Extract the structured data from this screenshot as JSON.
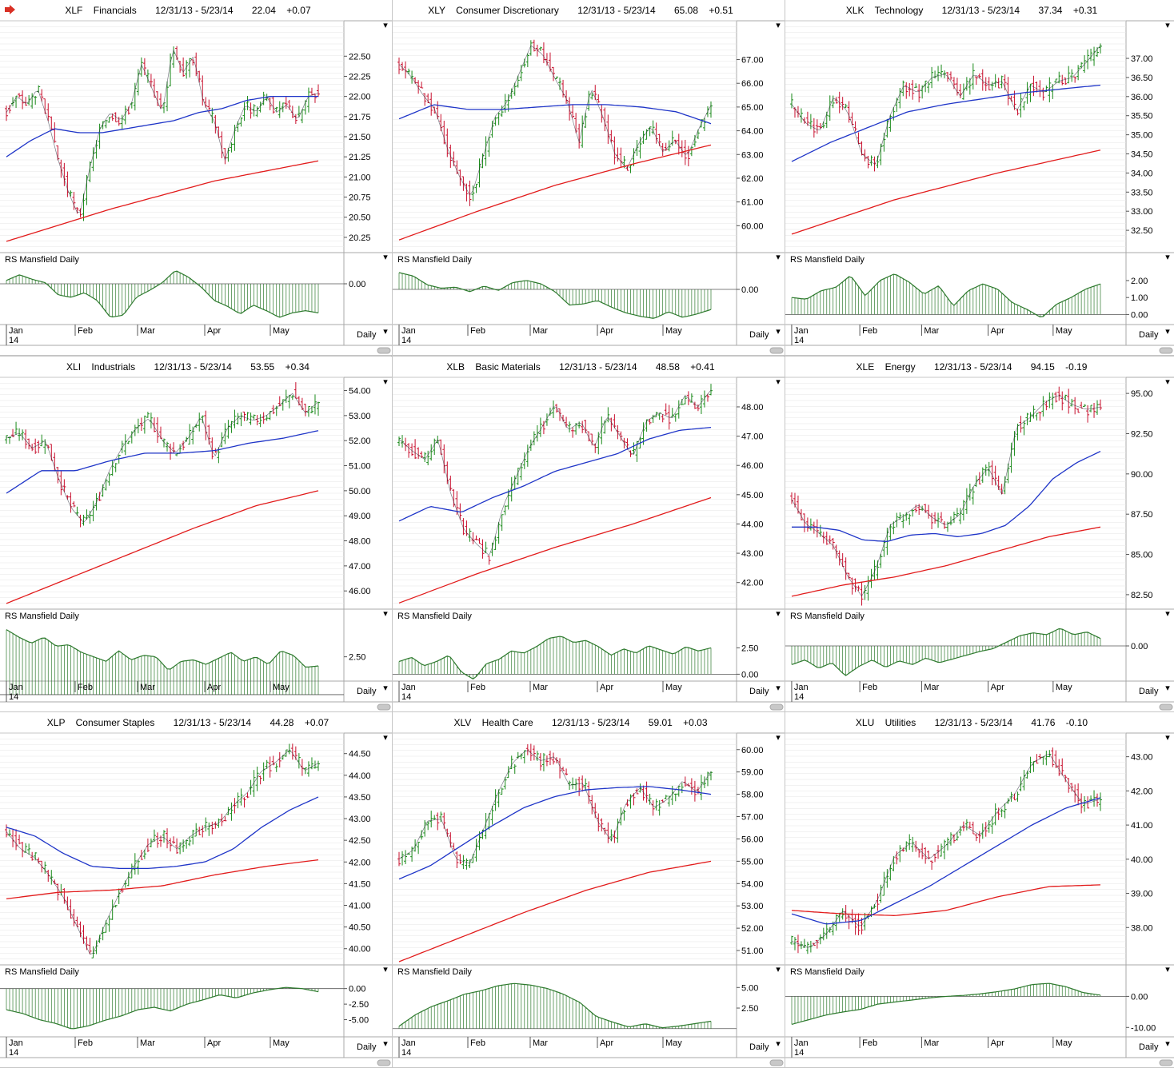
{
  "colors": {
    "price_up": "#1a8a1a",
    "price_down": "#c8102e",
    "ma_short": "#1f35c8",
    "ma_long": "#e21b1b",
    "rs": "#2d7a2d",
    "grid": "#e6e6e6",
    "border": "#a9a9a9",
    "arrow": "#d93025"
  },
  "common": {
    "rs_label": "RS Mansfield Daily",
    "daily_label": "Daily",
    "months": [
      "Jan",
      "Feb",
      "Mar",
      "Apr",
      "May"
    ],
    "year": "14",
    "date_range": "12/31/13 - 5/23/14",
    "menu_glyph": "▾"
  },
  "chart_data": [
    {
      "type": "line",
      "symbol": "XLF",
      "name": "Financials",
      "last": "22.04",
      "change": "+0.07",
      "ylim": [
        20.1,
        22.9
      ],
      "yticks": [
        "20.25",
        "20.50",
        "20.75",
        "21.00",
        "21.25",
        "21.50",
        "21.75",
        "22.00",
        "22.25",
        "22.50"
      ],
      "price": [
        21.8,
        22.0,
        21.9,
        22.1,
        21.7,
        21.2,
        20.8,
        20.5,
        21.1,
        21.6,
        21.8,
        21.7,
        21.9,
        22.4,
        22.1,
        21.8,
        22.6,
        22.3,
        22.5,
        21.9,
        21.7,
        21.2,
        21.6,
        21.9,
        21.8,
        22.0,
        21.8,
        21.9,
        21.7,
        22.0,
        22.04
      ],
      "ma50": [
        21.25,
        21.45,
        21.6,
        21.55,
        21.55,
        21.6,
        21.65,
        21.7,
        21.8,
        21.85,
        21.95,
        22.0,
        22.0,
        22.0
      ],
      "ma200": [
        20.2,
        20.6,
        20.95,
        21.2
      ],
      "rs_ylim": [
        -3.5,
        1.5
      ],
      "rs_yticks": [
        "0.00"
      ],
      "rs": [
        0.3,
        0.8,
        0.4,
        0.1,
        -1.0,
        -1.2,
        -0.8,
        -1.5,
        -3.0,
        -2.8,
        -1.2,
        -0.6,
        0.1,
        1.2,
        0.6,
        -0.3,
        -1.5,
        -2.0,
        -2.7,
        -1.9,
        -2.4,
        -3.0,
        -2.6,
        -2.4,
        -2.6
      ]
    },
    {
      "type": "line",
      "symbol": "XLY",
      "name": "Consumer Discretionary",
      "last": "65.08",
      "change": "+0.51",
      "ylim": [
        59.0,
        68.5
      ],
      "yticks": [
        "60.00",
        "61.00",
        "62.00",
        "63.00",
        "64.00",
        "65.00",
        "66.00",
        "67.00"
      ],
      "price": [
        66.8,
        66.3,
        65.5,
        64.9,
        63.3,
        62.1,
        61.2,
        62.9,
        64.6,
        65.2,
        66.4,
        67.6,
        67.2,
        66.2,
        65.3,
        63.5,
        65.8,
        64.6,
        63.0,
        62.4,
        63.5,
        64.2,
        63.1,
        63.6,
        62.9,
        64.1,
        65.08
      ],
      "ma50": [
        64.5,
        65.1,
        64.9,
        64.9,
        65.0,
        65.1,
        65.1,
        65.0,
        64.8,
        64.3
      ],
      "ma200": [
        59.4,
        60.6,
        61.7,
        62.6,
        63.4
      ],
      "rs_ylim": [
        -3.0,
        2.0
      ],
      "rs_yticks": [
        "0.00"
      ],
      "rs": [
        1.5,
        1.2,
        0.4,
        0.1,
        0.2,
        -0.2,
        0.3,
        -0.1,
        0.6,
        0.8,
        0.5,
        -0.2,
        -1.4,
        -1.3,
        -1.0,
        -1.6,
        -2.1,
        -2.4,
        -2.6,
        -2.0,
        -2.5,
        -2.2,
        -1.8
      ]
    },
    {
      "type": "line",
      "symbol": "XLK",
      "name": "Technology",
      "last": "37.34",
      "change": "+0.31",
      "ylim": [
        32.0,
        37.9
      ],
      "yticks": [
        "32.50",
        "33.00",
        "33.50",
        "34.00",
        "34.50",
        "35.00",
        "35.50",
        "36.00",
        "36.50",
        "37.00"
      ],
      "price": [
        35.8,
        35.3,
        35.1,
        36.0,
        35.6,
        34.5,
        34.2,
        35.5,
        36.3,
        36.1,
        36.5,
        36.6,
        36.0,
        36.6,
        36.3,
        36.4,
        35.6,
        36.3,
        36.1,
        36.4,
        36.5,
        36.9,
        37.34
      ],
      "ma50": [
        34.3,
        34.8,
        35.2,
        35.6,
        35.8,
        35.95,
        36.1,
        36.2,
        36.3
      ],
      "ma200": [
        32.4,
        33.3,
        34.0,
        34.6
      ],
      "rs_ylim": [
        -0.5,
        2.8
      ],
      "rs_yticks": [
        "0.00",
        "1.00",
        "2.00"
      ],
      "rs": [
        1.0,
        0.9,
        1.4,
        1.6,
        2.3,
        1.1,
        2.0,
        2.4,
        1.9,
        1.2,
        1.7,
        0.5,
        1.4,
        1.8,
        1.5,
        0.7,
        0.3,
        -0.2,
        0.6,
        1.0,
        1.5,
        1.8
      ]
    },
    {
      "type": "line",
      "symbol": "XLI",
      "name": "Industrials",
      "last": "53.55",
      "change": "+0.34",
      "ylim": [
        45.4,
        54.4
      ],
      "yticks": [
        "46.00",
        "47.00",
        "48.00",
        "49.00",
        "50.00",
        "51.00",
        "52.00",
        "53.00",
        "54.00"
      ],
      "price": [
        52.1,
        52.3,
        51.7,
        52.0,
        50.5,
        49.3,
        48.7,
        49.6,
        50.9,
        51.8,
        52.5,
        52.9,
        52.0,
        51.5,
        52.1,
        53.0,
        51.3,
        52.5,
        53.0,
        52.8,
        53.0,
        53.4,
        53.9,
        53.1,
        53.55
      ],
      "ma50": [
        49.9,
        50.8,
        50.8,
        51.2,
        51.5,
        51.5,
        51.6,
        51.9,
        52.1,
        52.4
      ],
      "ma200": [
        45.5,
        46.5,
        47.5,
        48.5,
        49.4,
        50.0
      ],
      "rs_ylim": [
        1.0,
        4.7
      ],
      "rs_yticks": [
        "2.50"
      ],
      "rs": [
        4.3,
        3.8,
        3.4,
        3.8,
        3.2,
        3.3,
        2.8,
        2.5,
        2.2,
        2.9,
        2.3,
        2.6,
        2.5,
        1.6,
        2.2,
        2.3,
        2.0,
        2.4,
        2.8,
        2.2,
        2.5,
        2.0,
        2.9,
        2.6,
        1.8,
        1.9
      ]
    },
    {
      "type": "line",
      "symbol": "XLB",
      "name": "Basic Materials",
      "last": "48.58",
      "change": "+0.41",
      "ylim": [
        41.2,
        48.9
      ],
      "yticks": [
        "42.00",
        "43.00",
        "44.00",
        "45.00",
        "46.00",
        "47.00",
        "48.00"
      ],
      "price": [
        46.9,
        46.5,
        46.2,
        46.9,
        45.0,
        43.8,
        43.3,
        42.9,
        44.6,
        45.6,
        46.6,
        47.3,
        48.1,
        47.2,
        47.5,
        46.6,
        47.7,
        47.0,
        46.3,
        47.5,
        47.8,
        47.6,
        48.4,
        48.0,
        48.58
      ],
      "ma50": [
        44.1,
        44.6,
        44.4,
        44.9,
        45.3,
        45.8,
        46.1,
        46.4,
        46.9,
        47.2,
        47.3
      ],
      "ma200": [
        41.3,
        42.3,
        43.2,
        44.0,
        44.9
      ],
      "rs_ylim": [
        -0.5,
        4.8
      ],
      "rs_yticks": [
        "0.00",
        "2.50"
      ],
      "rs": [
        1.2,
        1.6,
        0.8,
        1.2,
        1.8,
        0.2,
        -0.5,
        1.0,
        1.4,
        2.2,
        2.0,
        2.6,
        3.4,
        3.6,
        3.0,
        3.2,
        2.6,
        1.8,
        2.4,
        2.0,
        2.7,
        2.3,
        1.9,
        2.6,
        2.2,
        2.5
      ]
    },
    {
      "type": "line",
      "symbol": "XLE",
      "name": "Energy",
      "last": "94.15",
      "change": "-0.19",
      "ylim": [
        81.8,
        95.8
      ],
      "yticks": [
        "82.50",
        "85.00",
        "87.50",
        "90.00",
        "92.50",
        "95.00"
      ],
      "price": [
        88.4,
        86.9,
        86.3,
        85.5,
        83.6,
        82.4,
        84.1,
        86.8,
        87.4,
        88.1,
        87.3,
        86.8,
        87.5,
        89.3,
        90.4,
        88.7,
        92.9,
        93.5,
        94.4,
        94.9,
        94.3,
        94.0,
        94.15
      ],
      "ma50": [
        86.7,
        86.7,
        86.5,
        85.9,
        85.8,
        86.2,
        86.3,
        86.1,
        86.3,
        86.8,
        88.0,
        89.7,
        90.7,
        91.4
      ],
      "ma200": [
        82.4,
        83.1,
        83.6,
        84.3,
        85.2,
        86.1,
        86.7
      ],
      "rs_ylim": [
        -3.6,
        2.4
      ],
      "rs_yticks": [
        "0.00"
      ],
      "rs": [
        -2.0,
        -1.5,
        -2.4,
        -1.8,
        -3.2,
        -2.2,
        -1.5,
        -2.3,
        -1.6,
        -2.0,
        -1.3,
        -1.8,
        -1.4,
        -1.0,
        -0.6,
        -0.3,
        0.4,
        1.1,
        1.4,
        1.2,
        1.9,
        1.2,
        1.5,
        0.8
      ]
    },
    {
      "type": "line",
      "symbol": "XLP",
      "name": "Consumer Staples",
      "last": "44.28",
      "change": "+0.07",
      "ylim": [
        39.7,
        44.9
      ],
      "yticks": [
        "40.00",
        "40.50",
        "41.00",
        "41.50",
        "42.00",
        "42.50",
        "43.00",
        "43.50",
        "44.00",
        "44.50"
      ],
      "price": [
        42.7,
        42.3,
        42.1,
        41.7,
        41.2,
        40.5,
        39.8,
        40.6,
        41.3,
        41.9,
        42.4,
        42.6,
        42.3,
        42.6,
        42.8,
        42.9,
        43.3,
        43.6,
        44.1,
        44.3,
        44.6,
        44.1,
        44.28
      ],
      "ma50": [
        42.8,
        42.6,
        42.2,
        41.9,
        41.85,
        41.85,
        41.9,
        42.0,
        42.3,
        42.8,
        43.2,
        43.5
      ],
      "ma200": [
        41.15,
        41.3,
        41.35,
        41.45,
        41.7,
        41.9,
        42.05
      ],
      "rs_ylim": [
        -7.5,
        1.5
      ],
      "rs_yticks": [
        "0.00",
        "-2.50",
        "-5.00"
      ],
      "rs": [
        -3.4,
        -4.0,
        -5.0,
        -5.6,
        -6.5,
        -6.0,
        -5.1,
        -4.4,
        -3.4,
        -3.0,
        -3.6,
        -2.5,
        -1.8,
        -1.0,
        -1.5,
        -0.7,
        -0.2,
        0.2,
        0.0,
        -0.5
      ]
    },
    {
      "type": "line",
      "symbol": "XLV",
      "name": "Health Care",
      "last": "59.01",
      "change": "+0.03",
      "ylim": [
        50.5,
        60.6
      ],
      "yticks": [
        "51.00",
        "52.00",
        "53.00",
        "54.00",
        "55.00",
        "56.00",
        "57.00",
        "58.00",
        "59.00",
        "60.00"
      ],
      "price": [
        55.1,
        55.5,
        56.8,
        56.9,
        55.1,
        54.9,
        56.5,
        58.1,
        59.4,
        60.0,
        59.5,
        59.7,
        58.4,
        58.5,
        56.8,
        55.9,
        57.6,
        58.3,
        57.4,
        57.8,
        58.6,
        58.1,
        59.01
      ],
      "ma50": [
        54.2,
        54.8,
        55.7,
        56.6,
        57.4,
        57.9,
        58.2,
        58.3,
        58.35,
        58.2,
        58.0
      ],
      "ma200": [
        50.5,
        51.6,
        52.7,
        53.7,
        54.5,
        55.0
      ],
      "rs_ylim": [
        -0.8,
        6.0
      ],
      "rs_yticks": [
        "2.50",
        "5.00"
      ],
      "rs": [
        0.3,
        1.7,
        2.7,
        3.4,
        4.2,
        4.6,
        5.2,
        5.5,
        5.3,
        4.9,
        4.2,
        3.2,
        1.5,
        0.8,
        0.2,
        0.6,
        0.1,
        0.3,
        0.6,
        0.9
      ]
    },
    {
      "type": "line",
      "symbol": "XLU",
      "name": "Utilities",
      "last": "41.76",
      "change": "-0.10",
      "ylim": [
        37.0,
        43.6
      ],
      "yticks": [
        "38.00",
        "39.00",
        "40.00",
        "41.00",
        "42.00",
        "43.00"
      ],
      "price": [
        37.6,
        37.4,
        37.8,
        38.5,
        38.0,
        38.8,
        40.1,
        40.5,
        40.0,
        40.4,
        41.0,
        40.7,
        41.4,
        41.9,
        42.8,
        43.1,
        42.3,
        41.6,
        41.76
      ],
      "ma50": [
        38.4,
        38.1,
        38.2,
        38.7,
        39.2,
        39.8,
        40.4,
        41.0,
        41.5,
        41.8
      ],
      "ma200": [
        38.5,
        38.4,
        38.35,
        38.5,
        38.9,
        39.2,
        39.25
      ],
      "rs_ylim": [
        -12.5,
        5.5
      ],
      "rs_yticks": [
        "0.00",
        "-10.00"
      ],
      "rs": [
        -9.0,
        -7.5,
        -6.0,
        -5.0,
        -4.2,
        -2.5,
        -1.8,
        -1.2,
        -0.5,
        0.0,
        0.3,
        0.8,
        1.5,
        2.4,
        3.8,
        4.2,
        3.1,
        1.2,
        0.4
      ]
    }
  ]
}
